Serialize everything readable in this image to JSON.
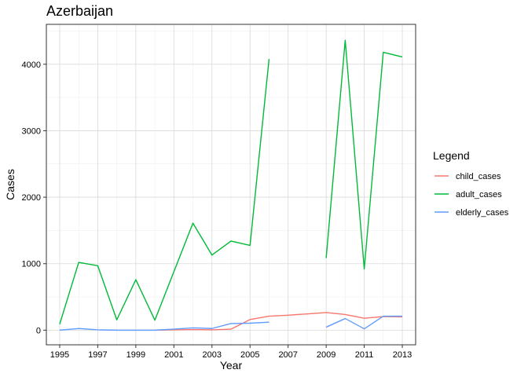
{
  "chart_data": {
    "type": "line",
    "title": "Azerbaijan",
    "xlabel": "Year",
    "ylabel": "Cases",
    "xlim": [
      1994.3,
      2013.7
    ],
    "ylim": [
      -220,
      4600
    ],
    "x_ticks": [
      1995,
      1997,
      1999,
      2001,
      2003,
      2005,
      2007,
      2009,
      2011,
      2013
    ],
    "x_tick_labels": [
      "1995",
      "1997",
      "1999",
      "2001",
      "2003",
      "2005",
      "2007",
      "2009",
      "2011",
      "2013"
    ],
    "y_ticks": [
      0,
      1000,
      2000,
      3000,
      4000
    ],
    "y_tick_labels": [
      "0",
      "1000",
      "2000",
      "3000",
      "4000"
    ],
    "grid": true,
    "legend": {
      "title": "Legend",
      "position": "right"
    },
    "x": [
      1995,
      1996,
      1997,
      1998,
      1999,
      2000,
      2001,
      2002,
      2003,
      2004,
      2005,
      2006,
      2007,
      2008,
      2009,
      2010,
      2011,
      2012,
      2013
    ],
    "series": [
      {
        "name": "child_cases",
        "color": "#F8766D",
        "values": [
          null,
          null,
          null,
          null,
          null,
          0,
          5,
          10,
          5,
          15,
          160,
          210,
          225,
          245,
          265,
          235,
          180,
          205,
          200
        ]
      },
      {
        "name": "adult_cases",
        "color": "#00BA38",
        "values": [
          90,
          1020,
          970,
          155,
          760,
          150,
          880,
          1610,
          1130,
          1340,
          1275,
          4080,
          null,
          null,
          1085,
          4360,
          920,
          4180,
          4110
        ]
      },
      {
        "name": "elderly_cases",
        "color": "#619CFF",
        "values": [
          0,
          25,
          5,
          0,
          0,
          0,
          15,
          35,
          25,
          100,
          105,
          120,
          null,
          null,
          45,
          175,
          20,
          210,
          210
        ]
      }
    ]
  }
}
